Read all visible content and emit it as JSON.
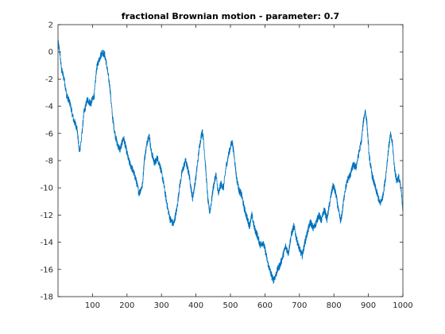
{
  "chart_data": {
    "type": "line",
    "title": "fractional Brownian motion - parameter: 0.7",
    "xlabel": "",
    "ylabel": "",
    "xlim": [
      0,
      1000
    ],
    "ylim": [
      -18,
      2
    ],
    "grid": false,
    "legend": "none",
    "x_ticks": [
      100,
      200,
      300,
      400,
      500,
      600,
      700,
      800,
      900,
      1000
    ],
    "y_ticks": [
      2,
      0,
      -2,
      -4,
      -6,
      -8,
      -10,
      -12,
      -14,
      -16,
      -18
    ],
    "series": [
      {
        "color": "#0072BD",
        "anchors": [
          [
            0,
            0.7
          ],
          [
            5,
            0.0
          ],
          [
            10,
            -1.3
          ],
          [
            18,
            -2.0
          ],
          [
            25,
            -3.2
          ],
          [
            35,
            -3.8
          ],
          [
            45,
            -5.0
          ],
          [
            55,
            -5.6
          ],
          [
            62,
            -7.4
          ],
          [
            68,
            -6.4
          ],
          [
            75,
            -4.5
          ],
          [
            85,
            -3.5
          ],
          [
            95,
            -3.8
          ],
          [
            105,
            -3.2
          ],
          [
            112,
            -1.2
          ],
          [
            120,
            -0.5
          ],
          [
            128,
            0.0
          ],
          [
            135,
            -0.2
          ],
          [
            140,
            -0.8
          ],
          [
            150,
            -2.5
          ],
          [
            158,
            -4.8
          ],
          [
            165,
            -6.0
          ],
          [
            172,
            -6.8
          ],
          [
            180,
            -7.2
          ],
          [
            190,
            -6.3
          ],
          [
            198,
            -7.2
          ],
          [
            205,
            -8.0
          ],
          [
            215,
            -8.6
          ],
          [
            225,
            -9.3
          ],
          [
            235,
            -10.4
          ],
          [
            245,
            -9.8
          ],
          [
            250,
            -8.0
          ],
          [
            260,
            -6.4
          ],
          [
            265,
            -6.2
          ],
          [
            270,
            -7.3
          ],
          [
            280,
            -8.2
          ],
          [
            288,
            -7.8
          ],
          [
            296,
            -8.4
          ],
          [
            305,
            -9.5
          ],
          [
            310,
            -10.3
          ],
          [
            318,
            -11.5
          ],
          [
            325,
            -12.3
          ],
          [
            335,
            -12.7
          ],
          [
            345,
            -11.5
          ],
          [
            352,
            -10.0
          ],
          [
            360,
            -8.8
          ],
          [
            370,
            -8.0
          ],
          [
            380,
            -9.0
          ],
          [
            390,
            -10.8
          ],
          [
            400,
            -9.2
          ],
          [
            410,
            -7.0
          ],
          [
            418,
            -5.8
          ],
          [
            422,
            -6.5
          ],
          [
            428,
            -8.5
          ],
          [
            435,
            -11.0
          ],
          [
            440,
            -11.8
          ],
          [
            445,
            -11.0
          ],
          [
            450,
            -10.0
          ],
          [
            458,
            -9.0
          ],
          [
            465,
            -10.5
          ],
          [
            472,
            -9.7
          ],
          [
            480,
            -10.0
          ],
          [
            487,
            -8.5
          ],
          [
            495,
            -7.5
          ],
          [
            500,
            -7.0
          ],
          [
            505,
            -6.6
          ],
          [
            510,
            -7.5
          ],
          [
            518,
            -9.3
          ],
          [
            525,
            -10.2
          ],
          [
            532,
            -10.5
          ],
          [
            540,
            -11.5
          ],
          [
            548,
            -12.2
          ],
          [
            555,
            -12.8
          ],
          [
            562,
            -12.0
          ],
          [
            570,
            -13.0
          ],
          [
            578,
            -13.5
          ],
          [
            586,
            -14.2
          ],
          [
            594,
            -14.0
          ],
          [
            600,
            -14.5
          ],
          [
            608,
            -15.5
          ],
          [
            616,
            -16.2
          ],
          [
            624,
            -16.8
          ],
          [
            630,
            -16.5
          ],
          [
            637,
            -16.0
          ],
          [
            645,
            -15.6
          ],
          [
            652,
            -15.0
          ],
          [
            660,
            -14.3
          ],
          [
            668,
            -14.8
          ],
          [
            676,
            -13.5
          ],
          [
            684,
            -12.8
          ],
          [
            692,
            -13.8
          ],
          [
            700,
            -14.5
          ],
          [
            708,
            -15.0
          ],
          [
            716,
            -14.0
          ],
          [
            724,
            -13.2
          ],
          [
            732,
            -12.5
          ],
          [
            740,
            -13.0
          ],
          [
            748,
            -12.6
          ],
          [
            756,
            -12.0
          ],
          [
            764,
            -12.4
          ],
          [
            772,
            -11.6
          ],
          [
            780,
            -12.3
          ],
          [
            786,
            -11.4
          ],
          [
            792,
            -10.5
          ],
          [
            798,
            -9.8
          ],
          [
            806,
            -10.5
          ],
          [
            814,
            -11.8
          ],
          [
            820,
            -12.5
          ],
          [
            826,
            -11.4
          ],
          [
            832,
            -10.2
          ],
          [
            840,
            -9.4
          ],
          [
            848,
            -9.0
          ],
          [
            856,
            -8.3
          ],
          [
            864,
            -8.5
          ],
          [
            872,
            -7.5
          ],
          [
            880,
            -6.5
          ],
          [
            886,
            -5.0
          ],
          [
            891,
            -4.3
          ],
          [
            896,
            -5.3
          ],
          [
            902,
            -7.6
          ],
          [
            910,
            -9.0
          ],
          [
            918,
            -9.8
          ],
          [
            926,
            -10.5
          ],
          [
            934,
            -11.2
          ],
          [
            942,
            -10.6
          ],
          [
            950,
            -9.2
          ],
          [
            958,
            -7.2
          ],
          [
            964,
            -6.1
          ],
          [
            970,
            -6.8
          ],
          [
            976,
            -8.6
          ],
          [
            982,
            -9.5
          ],
          [
            988,
            -9.2
          ],
          [
            994,
            -10.0
          ],
          [
            998,
            -11.0
          ],
          [
            1000,
            -11.6
          ]
        ]
      }
    ]
  }
}
